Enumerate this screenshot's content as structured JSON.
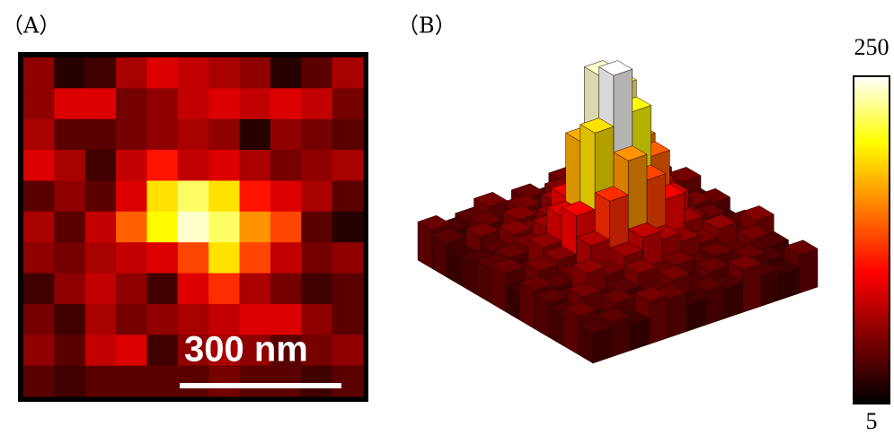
{
  "chart_data": [
    {
      "type": "heatmap",
      "label": "（A）",
      "scale_bar": "300 nm",
      "zlim": [
        5,
        250
      ],
      "values": [
        [
          60,
          20,
          30,
          70,
          90,
          80,
          70,
          60,
          20,
          40,
          70
        ],
        [
          60,
          90,
          90,
          50,
          60,
          80,
          90,
          80,
          90,
          80,
          50
        ],
        [
          70,
          40,
          40,
          50,
          60,
          70,
          60,
          20,
          60,
          50,
          40
        ],
        [
          90,
          70,
          30,
          80,
          110,
          80,
          90,
          70,
          50,
          60,
          70
        ],
        [
          40,
          60,
          40,
          90,
          190,
          220,
          190,
          110,
          90,
          70,
          40
        ],
        [
          70,
          40,
          80,
          140,
          200,
          240,
          220,
          160,
          130,
          40,
          20
        ],
        [
          60,
          50,
          70,
          80,
          90,
          130,
          190,
          130,
          80,
          50,
          60
        ],
        [
          30,
          60,
          80,
          60,
          30,
          90,
          120,
          70,
          50,
          30,
          40
        ],
        [
          50,
          30,
          70,
          50,
          60,
          70,
          80,
          90,
          90,
          60,
          40
        ],
        [
          60,
          40,
          80,
          90,
          30,
          60,
          70,
          60,
          40,
          50,
          60
        ],
        [
          40,
          30,
          40,
          40,
          40,
          40,
          50,
          40,
          40,
          30,
          40
        ]
      ]
    },
    {
      "type": "bar3d",
      "label": "（B）",
      "zlim": [
        5,
        250
      ],
      "zticks": [
        5,
        250
      ],
      "values": [
        [
          30,
          40,
          25,
          50,
          35,
          45,
          30,
          40,
          55,
          35,
          30,
          45
        ],
        [
          45,
          30,
          60,
          35,
          40,
          50,
          45,
          35,
          40,
          50,
          35,
          30
        ],
        [
          35,
          50,
          40,
          45,
          55,
          60,
          50,
          45,
          60,
          40,
          45,
          35
        ],
        [
          40,
          35,
          55,
          50,
          70,
          90,
          85,
          65,
          50,
          45,
          30,
          50
        ],
        [
          50,
          45,
          40,
          65,
          110,
          150,
          140,
          100,
          60,
          40,
          45,
          35
        ],
        [
          35,
          55,
          50,
          80,
          140,
          220,
          200,
          130,
          70,
          50,
          35,
          40
        ],
        [
          45,
          40,
          60,
          70,
          130,
          240,
          250,
          160,
          80,
          45,
          50,
          30
        ],
        [
          30,
          50,
          45,
          60,
          95,
          170,
          190,
          120,
          65,
          55,
          40,
          45
        ],
        [
          50,
          35,
          55,
          50,
          65,
          90,
          100,
          75,
          50,
          40,
          35,
          50
        ],
        [
          40,
          45,
          35,
          55,
          50,
          60,
          55,
          45,
          60,
          35,
          45,
          30
        ],
        [
          35,
          30,
          50,
          40,
          45,
          35,
          50,
          40,
          35,
          50,
          30,
          40
        ],
        [
          45,
          40,
          30,
          35,
          40,
          45,
          30,
          45,
          40,
          35,
          45,
          35
        ]
      ]
    }
  ]
}
